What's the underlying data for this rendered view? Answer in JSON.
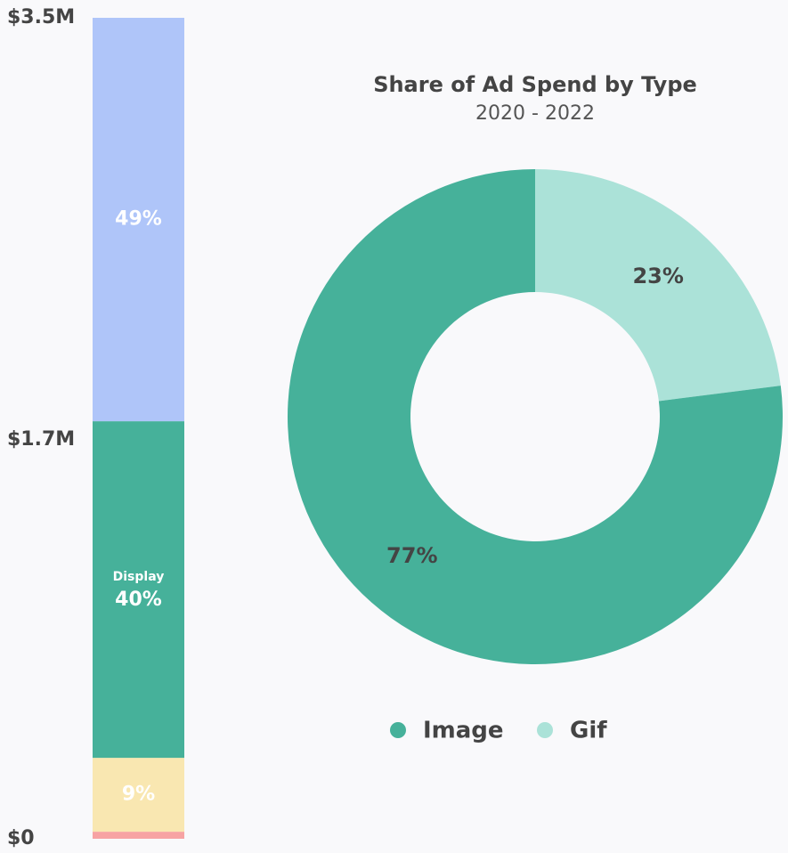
{
  "chart_data": [
    {
      "type": "stacked_bar",
      "ylim": [
        0,
        3500000
      ],
      "yticks": [
        {
          "value": 0,
          "label": "$0"
        },
        {
          "value": 1700000,
          "label": "$1.7M"
        },
        {
          "value": 3500000,
          "label": "$3.5M"
        }
      ],
      "series": [
        {
          "color": "#f7a3a3",
          "values": [
            30000
          ]
        },
        {
          "color": "#f9e7b1",
          "values": [
            315000
          ],
          "value_labels": [
            "9%"
          ]
        },
        {
          "name": "Display",
          "color": "#46b19a",
          "values": [
            1435000
          ],
          "value_labels": [
            "40%"
          ]
        },
        {
          "color": "#afc5f9",
          "values": [
            1720000
          ],
          "value_labels": [
            "49%"
          ]
        }
      ]
    },
    {
      "type": "donut",
      "title": "Share of Ad Spend by Type",
      "subtitle": "2020 - 2022",
      "categories": [
        "Image",
        "Gif"
      ],
      "values": [
        77,
        23
      ],
      "value_labels": [
        "77%",
        "23%"
      ],
      "colors": [
        "#46b19a",
        "#abe2d8"
      ],
      "legend": "bottom"
    }
  ]
}
